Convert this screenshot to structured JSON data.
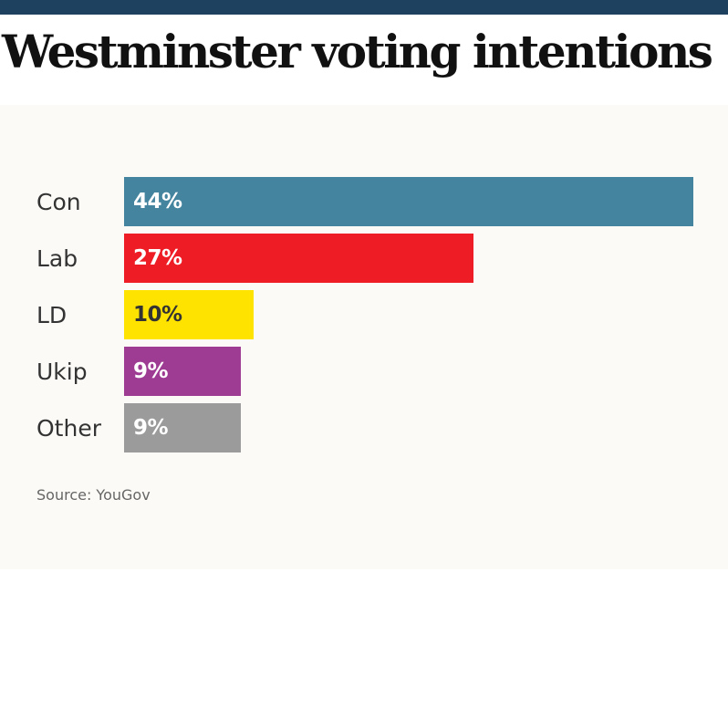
{
  "title": "Westminster voting intentions",
  "source": "Source: YouGov",
  "colors": {
    "header_bar": "#1e4160",
    "panel_background": "#fbfaf6"
  },
  "chart_data": {
    "type": "bar",
    "orientation": "horizontal",
    "title": "Westminster voting intentions",
    "xlabel": "",
    "ylabel": "",
    "xlim": [
      0,
      44
    ],
    "grid": false,
    "categories": [
      "Con",
      "Lab",
      "LD",
      "Ukip",
      "Other"
    ],
    "values": [
      44,
      27,
      10,
      9,
      9
    ],
    "value_labels": [
      "44%",
      "27%",
      "10%",
      "9%",
      "9%"
    ],
    "bar_colors": [
      "#44849f",
      "#ee1c25",
      "#ffe300",
      "#9e3c93",
      "#9b9b9b"
    ],
    "label_colors": [
      "#ffffff",
      "#ffffff",
      "#333333",
      "#ffffff",
      "#ffffff"
    ],
    "source": "Source: YouGov"
  }
}
